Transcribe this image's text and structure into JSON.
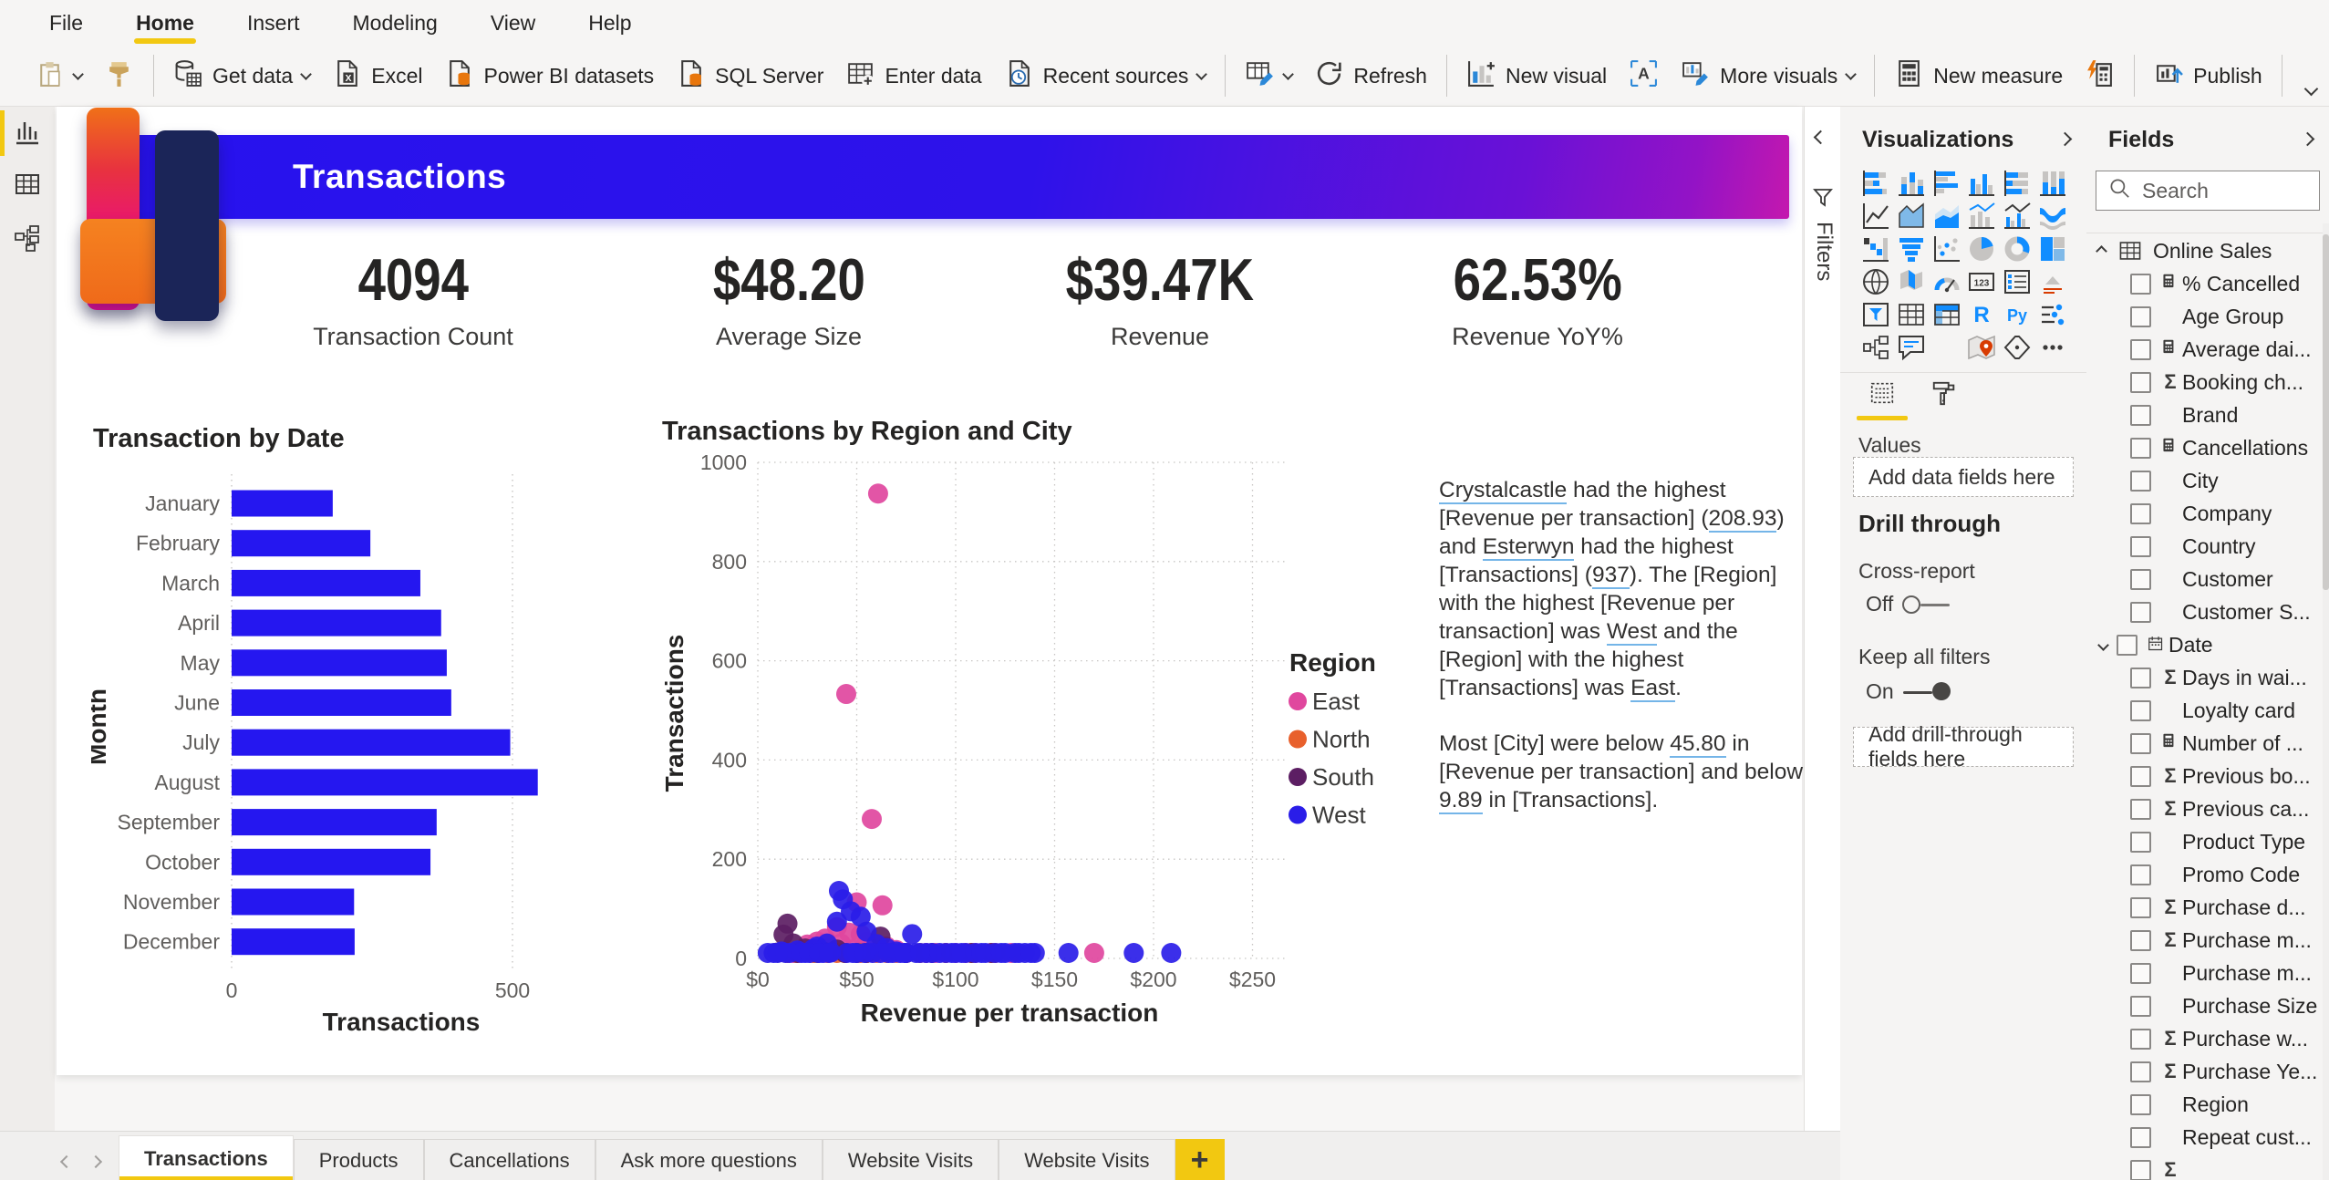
{
  "colors": {
    "accent": "#F2C811",
    "banner_start": "#2712EE",
    "banner_end": "#C418AE",
    "bar": "#2517F0",
    "east": "#E0479E",
    "north": "#E8602C",
    "south": "#5C1E63",
    "west": "#2A1DE8"
  },
  "menu": {
    "items": [
      {
        "label": "File",
        "active": false
      },
      {
        "label": "Home",
        "active": true
      },
      {
        "label": "Insert",
        "active": false
      },
      {
        "label": "Modeling",
        "active": false
      },
      {
        "label": "View",
        "active": false
      },
      {
        "label": "Help",
        "active": false
      }
    ]
  },
  "ribbon": {
    "items": [
      {
        "kind": "icon",
        "icon": "paste",
        "name": "paste-button",
        "caret": true
      },
      {
        "kind": "icon",
        "icon": "format-painter",
        "name": "format-painter-button"
      },
      {
        "kind": "divider"
      },
      {
        "kind": "button",
        "icon": "get-data",
        "label": "Get data",
        "caret": true,
        "name": "get-data-button"
      },
      {
        "kind": "button",
        "icon": "excel",
        "label": "Excel",
        "name": "excel-button"
      },
      {
        "kind": "button",
        "icon": "pbi-datasets",
        "label": "Power BI datasets",
        "name": "power-bi-datasets-button"
      },
      {
        "kind": "button",
        "icon": "sql-server",
        "label": "SQL Server",
        "name": "sql-server-button"
      },
      {
        "kind": "button",
        "icon": "enter-data",
        "label": "Enter data",
        "name": "enter-data-button"
      },
      {
        "kind": "button",
        "icon": "recent-sources",
        "label": "Recent sources",
        "caret": true,
        "name": "recent-sources-button"
      },
      {
        "kind": "divider"
      },
      {
        "kind": "icon",
        "icon": "transform-data",
        "caret": true,
        "name": "transform-data-button"
      },
      {
        "kind": "button",
        "icon": "refresh",
        "label": "Refresh",
        "name": "refresh-button"
      },
      {
        "kind": "divider"
      },
      {
        "kind": "button",
        "icon": "new-visual",
        "label": "New visual",
        "name": "new-visual-button"
      },
      {
        "kind": "icon",
        "icon": "text-box",
        "name": "text-box-button"
      },
      {
        "kind": "button",
        "icon": "more-visuals",
        "label": "More visuals",
        "caret": true,
        "name": "more-visuals-button"
      },
      {
        "kind": "divider"
      },
      {
        "kind": "button",
        "icon": "new-measure",
        "label": "New measure",
        "name": "new-measure-button"
      },
      {
        "kind": "icon",
        "icon": "quick-measure",
        "name": "quick-measure-button"
      },
      {
        "kind": "divider"
      },
      {
        "kind": "button",
        "icon": "publish",
        "label": "Publish",
        "name": "publish-button"
      },
      {
        "kind": "divider"
      }
    ]
  },
  "sidebar": {
    "views": [
      {
        "id": "report-view",
        "active": true
      },
      {
        "id": "data-view",
        "active": false
      },
      {
        "id": "model-view",
        "active": false
      }
    ]
  },
  "filters_pane": {
    "label": "Filters"
  },
  "page": {
    "banner_title": "Transactions",
    "kpis": [
      {
        "value": "4094",
        "label": "Transaction Count"
      },
      {
        "value": "$48.20",
        "label": "Average Size"
      },
      {
        "value": "$39.47K",
        "label": "Revenue"
      },
      {
        "value": "62.53%",
        "label": "Revenue YoY%"
      }
    ],
    "narrative": {
      "paragraphs": [
        [
          {
            "t": "Crystalcastle",
            "u": 1
          },
          {
            "t": " had the highest [Revenue per transaction] ("
          },
          {
            "t": "208.93",
            "u": 1
          },
          {
            "t": ") and "
          },
          {
            "t": "Esterwyn",
            "u": 1
          },
          {
            "t": " had the highest [Transactions] ("
          },
          {
            "t": "937",
            "u": 1
          },
          {
            "t": "). The [Region] with the highest [Revenue per transaction] was "
          },
          {
            "t": "West",
            "u": 1
          },
          {
            "t": " and the [Region] with the highest [Transactions] was "
          },
          {
            "t": "East",
            "u": 1
          },
          {
            "t": "."
          }
        ],
        [
          {
            "t": "Most [City] were below "
          },
          {
            "t": "45.80",
            "u": 1
          },
          {
            "t": " in [Revenue per transaction] and below "
          },
          {
            "t": "9.89",
            "u": 1
          },
          {
            "t": " in [Transactions]."
          }
        ]
      ]
    }
  },
  "chart_data": [
    {
      "type": "bar",
      "orientation": "horizontal",
      "title": "Transaction by Date",
      "categories": [
        "January",
        "February",
        "March",
        "April",
        "May",
        "June",
        "July",
        "August",
        "September",
        "October",
        "November",
        "December"
      ],
      "values": [
        180,
        247,
        336,
        373,
        383,
        391,
        496,
        545,
        365,
        354,
        218,
        219
      ],
      "xlabel": "Transactions",
      "ylabel": "Month",
      "xticks": [
        0,
        500
      ],
      "xlim": [
        0,
        560
      ],
      "bar_color": "#2517F0",
      "grid": "dotted-vertical"
    },
    {
      "type": "scatter",
      "title": "Transactions by Region and City",
      "xlabel": "Revenue per transaction",
      "ylabel": "Transactions",
      "xlim": [
        0,
        250
      ],
      "ylim": [
        0,
        1000
      ],
      "xticks": [
        0,
        50,
        100,
        150,
        200,
        250
      ],
      "xtick_prefix": "$",
      "yticks": [
        0,
        200,
        400,
        600,
        800,
        1000
      ],
      "legend_title": "Region",
      "legend_position": "right",
      "series": [
        {
          "name": "East",
          "color": "#E0479E",
          "points": [
            [
              60.8,
              937
            ],
            [
              44.7,
              533
            ],
            [
              57.6,
              281
            ],
            [
              50,
              113
            ],
            [
              63,
              107
            ],
            [
              40,
              63
            ],
            [
              46,
              52
            ],
            [
              34,
              40
            ],
            [
              30,
              34
            ],
            [
              25,
              28
            ],
            [
              55,
              33
            ],
            [
              65,
              24
            ],
            [
              70,
              17
            ],
            [
              52,
              48
            ],
            [
              90,
              10
            ],
            [
              100,
              8
            ],
            [
              110,
              9
            ],
            [
              118,
              7
            ],
            [
              128,
              6
            ],
            [
              170,
              6
            ],
            [
              36,
              22
            ],
            [
              42,
              30
            ],
            [
              48,
              18
            ],
            [
              58,
              12
            ],
            [
              75,
              8
            ],
            [
              85,
              6
            ],
            [
              95,
              5
            ],
            [
              105,
              6
            ],
            [
              22,
              15
            ],
            [
              18,
              10
            ]
          ]
        },
        {
          "name": "North",
          "color": "#E8602C",
          "points": [
            [
              20,
              10
            ],
            [
              28,
              7
            ],
            [
              35,
              9
            ],
            [
              44,
              6
            ],
            [
              52,
              8
            ],
            [
              60,
              5
            ],
            [
              70,
              7
            ],
            [
              82,
              5
            ],
            [
              95,
              6
            ],
            [
              108,
              5
            ],
            [
              120,
              8
            ],
            [
              15,
              6
            ],
            [
              40,
              4
            ],
            [
              55,
              4
            ],
            [
              65,
              3
            ]
          ]
        },
        {
          "name": "South",
          "color": "#5C1E63",
          "points": [
            [
              15,
              70
            ],
            [
              13,
              48
            ],
            [
              18,
              30
            ],
            [
              24,
              20
            ],
            [
              33,
              14
            ],
            [
              44,
              11
            ],
            [
              55,
              9
            ],
            [
              62,
              44
            ],
            [
              75,
              7
            ],
            [
              88,
              5
            ],
            [
              108,
              4
            ],
            [
              118,
              7
            ],
            [
              10,
              12
            ],
            [
              20,
              8
            ],
            [
              30,
              6
            ],
            [
              50,
              5
            ],
            [
              40,
              18
            ]
          ]
        },
        {
          "name": "West",
          "color": "#2A1DE8",
          "points": [
            [
              41,
              136
            ],
            [
              43,
              119
            ],
            [
              47,
              95
            ],
            [
              52,
              84
            ],
            [
              40,
              74
            ],
            [
              55,
              54
            ],
            [
              78,
              49
            ],
            [
              35,
              30
            ],
            [
              30,
              24
            ],
            [
              28,
              19
            ],
            [
              60,
              29
            ],
            [
              65,
              21
            ],
            [
              70,
              14
            ],
            [
              75,
              11
            ],
            [
              85,
              9
            ],
            [
              95,
              7
            ],
            [
              100,
              11
            ],
            [
              105,
              8
            ],
            [
              110,
              6
            ],
            [
              115,
              9
            ],
            [
              120,
              7
            ],
            [
              125,
              5
            ],
            [
              130,
              8
            ],
            [
              135,
              6
            ],
            [
              140,
              4
            ],
            [
              157,
              7
            ],
            [
              190,
              6
            ],
            [
              208.93,
              9
            ],
            [
              8,
              10
            ],
            [
              12,
              14
            ],
            [
              16,
              8
            ],
            [
              20,
              16
            ],
            [
              24,
              10
            ],
            [
              33,
              8
            ],
            [
              37,
              12
            ],
            [
              45,
              6
            ],
            [
              50,
              10
            ],
            [
              58,
              7
            ],
            [
              62,
              5
            ],
            [
              68,
              8
            ],
            [
              72,
              6
            ],
            [
              80,
              5
            ],
            [
              88,
              7
            ],
            [
              92,
              4
            ],
            [
              5,
              5
            ],
            [
              10,
              4
            ],
            [
              14,
              6
            ],
            [
              22,
              5
            ],
            [
              26,
              7
            ],
            [
              31,
              4
            ],
            [
              36,
              5
            ],
            [
              48,
              4
            ],
            [
              54,
              3
            ],
            [
              66,
              4
            ],
            [
              74,
              3
            ],
            [
              82,
              4
            ],
            [
              98,
              3
            ],
            [
              103,
              5
            ],
            [
              113,
              4
            ],
            [
              123,
              3
            ],
            [
              132,
              4
            ],
            [
              138,
              3
            ]
          ]
        }
      ]
    }
  ],
  "visualizations_panel": {
    "title": "Visualizations",
    "icons": [
      "stacked-bar-chart",
      "stacked-column-chart",
      "clustered-bar-chart",
      "clustered-column-chart",
      "100-stacked-bar-chart",
      "100-stacked-column-chart",
      "line-chart",
      "area-chart",
      "stacked-area-chart",
      "line-and-stacked-column-chart",
      "line-and-clustered-column-chart",
      "ribbon-chart",
      "waterfall-chart",
      "funnel-chart",
      "scatter-chart",
      "pie-chart",
      "donut-chart",
      "treemap",
      "map",
      "filled-map",
      "gauge",
      "card",
      "multi-row-card",
      "kpi",
      "slicer",
      "table",
      "matrix",
      "r-script",
      "python",
      "key-influencers",
      "decomposition-tree",
      "qa",
      "blank",
      "arcgis-map",
      "power-apps",
      "more-options"
    ],
    "values_label": "Values",
    "add_fields_placeholder": "Add data fields here",
    "drill_through": {
      "heading": "Drill through",
      "cross_report_label": "Cross-report",
      "cross_report_state": "Off",
      "keep_filters_label": "Keep all filters",
      "keep_filters_state": "On",
      "add_drill_placeholder": "Add drill-through fields here"
    }
  },
  "fields_panel": {
    "title": "Fields",
    "search_placeholder": "Search",
    "table_name": "Online Sales",
    "items": [
      {
        "label": "% Cancelled",
        "icon": "calc"
      },
      {
        "label": "Age Group",
        "icon": ""
      },
      {
        "label": "Average dai...",
        "icon": "calc"
      },
      {
        "label": "Booking ch...",
        "icon": "sigma"
      },
      {
        "label": "Brand",
        "icon": ""
      },
      {
        "label": "Cancellations",
        "icon": "calc"
      },
      {
        "label": "City",
        "icon": ""
      },
      {
        "label": "Company",
        "icon": ""
      },
      {
        "label": "Country",
        "icon": ""
      },
      {
        "label": "Customer",
        "icon": ""
      },
      {
        "label": "Customer S...",
        "icon": ""
      },
      {
        "label": "Date",
        "icon": "calendar",
        "expandable": true
      },
      {
        "label": "Days in wai...",
        "icon": "sigma"
      },
      {
        "label": "Loyalty card",
        "icon": ""
      },
      {
        "label": "Number of ...",
        "icon": "calc"
      },
      {
        "label": "Previous bo...",
        "icon": "sigma"
      },
      {
        "label": "Previous ca...",
        "icon": "sigma"
      },
      {
        "label": "Product Type",
        "icon": ""
      },
      {
        "label": "Promo Code",
        "icon": ""
      },
      {
        "label": "Purchase d...",
        "icon": "sigma"
      },
      {
        "label": "Purchase m...",
        "icon": "sigma"
      },
      {
        "label": "Purchase m...",
        "icon": ""
      },
      {
        "label": "Purchase Size",
        "icon": ""
      },
      {
        "label": "Purchase w...",
        "icon": "sigma"
      },
      {
        "label": "Purchase Ye...",
        "icon": "sigma"
      },
      {
        "label": "Region",
        "icon": ""
      },
      {
        "label": "Repeat cust...",
        "icon": ""
      },
      {
        "label": "",
        "icon": "sigma",
        "partial": true
      }
    ]
  },
  "footer": {
    "tabs": [
      {
        "label": "Transactions",
        "active": true
      },
      {
        "label": "Products",
        "active": false
      },
      {
        "label": "Cancellations",
        "active": false
      },
      {
        "label": "Ask more questions",
        "active": false
      },
      {
        "label": "Website Visits",
        "active": false
      },
      {
        "label": "Website Visits",
        "active": false
      }
    ],
    "add_label": "+"
  }
}
